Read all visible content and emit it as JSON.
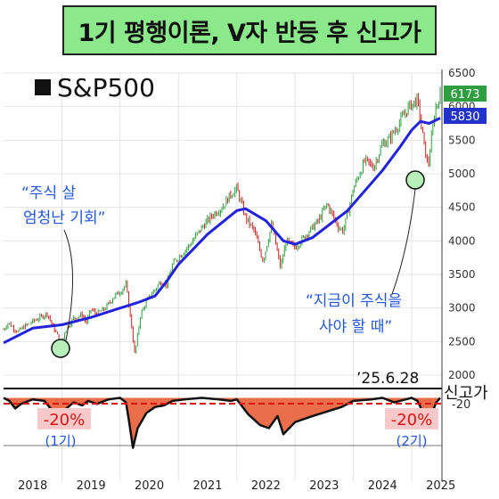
{
  "title": "1기 평행이론, V자 반등 후 신고가",
  "colors": {
    "title_bg": "#8be88b",
    "price_up": "#2e9e3e",
    "price_down": "#cc2222",
    "ma_line": "#2222dd",
    "drawdown_fill": "#e8552a",
    "annotation_blue": "#2255dd",
    "minus20_line": "#dd1111",
    "badge_green": "#2e9e3e",
    "badge_blue": "#2233cc",
    "highlight_circle": "#b8eeb8"
  },
  "chart_data": {
    "type": "line",
    "legend": "S&P500",
    "x_tick_labels": [
      "2018",
      "2019",
      "2020",
      "2021",
      "2022",
      "2023",
      "2024",
      "2025"
    ],
    "y_ticks": [
      "2000",
      "2500",
      "3000",
      "3500",
      "4000",
      "4500",
      "5000",
      "5500",
      "6000",
      "6500"
    ],
    "ylim": [
      2000,
      6500
    ],
    "price_badge": "6173",
    "ma_badge": "5830",
    "date_label": "’25.6.28",
    "annotations": {
      "buy_chance": [
        "“주식 살",
        "엄청난 기회”"
      ],
      "buy_stocks": [
        "“지금이 주식을",
        "사야 할 때”"
      ]
    },
    "series": [
      {
        "name": "S&P500",
        "x": [
          2018.0,
          2018.08,
          2018.17,
          2018.25,
          2018.35,
          2018.5,
          2018.65,
          2018.75,
          2018.85,
          2018.92,
          2018.98,
          2019.05,
          2019.2,
          2019.35,
          2019.42,
          2019.5,
          2019.6,
          2019.75,
          2019.9,
          2020.0,
          2020.1,
          2020.2,
          2020.25,
          2020.35,
          2020.45,
          2020.6,
          2020.7,
          2020.8,
          2020.9,
          2021.0,
          2021.2,
          2021.4,
          2021.6,
          2021.75,
          2021.9,
          2022.0,
          2022.15,
          2022.3,
          2022.45,
          2022.6,
          2022.75,
          2022.85,
          2023.0,
          2023.2,
          2023.4,
          2023.55,
          2023.75,
          2023.83,
          2024.0,
          2024.2,
          2024.35,
          2024.5,
          2024.6,
          2024.75,
          2024.95,
          2025.1,
          2025.2,
          2025.28,
          2025.4,
          2025.49
        ],
        "values": [
          2680,
          2780,
          2700,
          2650,
          2720,
          2800,
          2870,
          2920,
          2720,
          2600,
          2400,
          2650,
          2850,
          2900,
          2780,
          2980,
          2910,
          3000,
          3180,
          3240,
          3350,
          2700,
          2300,
          2900,
          3100,
          3280,
          3400,
          3350,
          3650,
          3750,
          3950,
          4200,
          4400,
          4500,
          4700,
          4780,
          4350,
          4150,
          3700,
          4250,
          3600,
          4000,
          3900,
          4100,
          4300,
          4550,
          4200,
          4150,
          4780,
          5200,
          5100,
          5450,
          5500,
          5700,
          6000,
          6100,
          5500,
          5100,
          5950,
          6173
        ]
      },
      {
        "name": "MA",
        "x": [
          2018.0,
          2018.5,
          2019.0,
          2019.5,
          2020.0,
          2020.3,
          2020.6,
          2020.8,
          2021.0,
          2021.5,
          2022.0,
          2022.15,
          2022.5,
          2022.8,
          2023.0,
          2023.3,
          2023.6,
          2023.9,
          2024.2,
          2024.5,
          2024.8,
          2025.0,
          2025.15,
          2025.3,
          2025.49
        ],
        "values": [
          2480,
          2700,
          2750,
          2860,
          3000,
          3080,
          3180,
          3400,
          3650,
          4100,
          4450,
          4480,
          4300,
          4000,
          3950,
          4050,
          4250,
          4450,
          4750,
          5050,
          5400,
          5650,
          5780,
          5750,
          5830
        ]
      }
    ],
    "drawdown": {
      "ylabel_tag": "신고가",
      "level_label": "-20",
      "minus20_labels": [
        "-20%",
        "-20%"
      ],
      "period_labels": [
        "(1기)",
        "(2기)"
      ],
      "x": [
        2018.0,
        2018.1,
        2018.2,
        2018.3,
        2018.5,
        2018.7,
        2018.85,
        2018.95,
        2019.05,
        2019.2,
        2019.35,
        2019.45,
        2019.6,
        2019.8,
        2020.0,
        2020.1,
        2020.15,
        2020.22,
        2020.3,
        2020.45,
        2020.6,
        2020.75,
        2020.9,
        2021.1,
        2021.4,
        2021.7,
        2021.9,
        2022.0,
        2022.2,
        2022.4,
        2022.55,
        2022.7,
        2022.8,
        2023.0,
        2023.3,
        2023.55,
        2023.8,
        2024.0,
        2024.3,
        2024.5,
        2024.7,
        2024.9,
        2025.0,
        2025.1,
        2025.2,
        2025.28,
        2025.35,
        2025.42,
        2025.49
      ],
      "values": [
        0,
        -2,
        -7,
        -4,
        -1,
        -2,
        -9,
        -15,
        -8,
        -3,
        -5,
        -2,
        -4,
        -1,
        0,
        -3,
        -15,
        -33,
        -20,
        -10,
        -6,
        -5,
        -2,
        -1,
        0,
        -1,
        -2,
        -1,
        -11,
        -18,
        -20,
        -12,
        -24,
        -16,
        -12,
        -9,
        -6,
        -2,
        -1,
        0,
        -3,
        -1,
        0,
        -2,
        -10,
        -20,
        -10,
        -3,
        0
      ],
      "ylim": [
        -35,
        5
      ]
    }
  }
}
